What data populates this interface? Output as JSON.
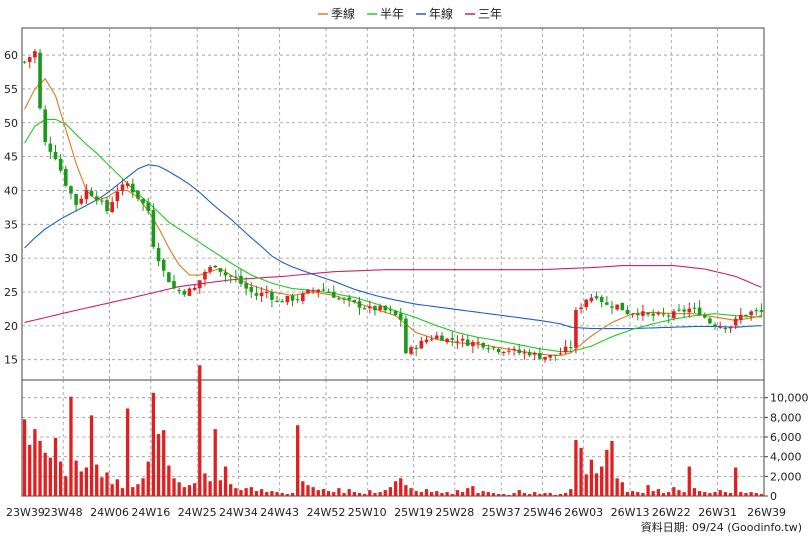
{
  "chart_data": {
    "type": "candlestick",
    "legend": [
      {
        "name": "季線",
        "color": "#e07a1a"
      },
      {
        "name": "半年",
        "color": "#22cc22"
      },
      {
        "name": "年線",
        "color": "#1f5fcf"
      },
      {
        "name": "三年",
        "color": "#cc2266"
      }
    ],
    "legend_placement": "top-center",
    "grid": true,
    "price_axis": {
      "ylim": [
        12,
        64
      ],
      "ticks": [
        15,
        20,
        25,
        30,
        35,
        40,
        45,
        50,
        55,
        60
      ]
    },
    "volume_axis": {
      "ylim": [
        0,
        11800
      ],
      "ticks": [
        0,
        2000,
        4000,
        6000,
        8000,
        10000
      ],
      "tick_labels": [
        "0",
        "2,000",
        "4,000",
        "6,000",
        "8,000",
        "10,000"
      ]
    },
    "x_tick_labels": [
      "23W39",
      "23W48",
      "24W06",
      "24W16",
      "24W25",
      "24W34",
      "24W43",
      "24W52",
      "25W10",
      "25W19",
      "25W28",
      "25W37",
      "25W46",
      "26W03",
      "26W13",
      "26W22",
      "26W31",
      "26W39"
    ],
    "colors": {
      "up": "#e02020",
      "down": "#1a9a1a",
      "volume": "#e02020"
    },
    "price_anchors": [
      [
        0,
        59
      ],
      [
        2,
        60.5
      ],
      [
        3,
        52
      ],
      [
        4,
        47
      ],
      [
        6,
        45
      ],
      [
        8,
        41
      ],
      [
        10,
        38
      ],
      [
        12,
        40
      ],
      [
        14,
        39
      ],
      [
        16,
        37
      ],
      [
        18,
        40
      ],
      [
        20,
        41
      ],
      [
        22,
        39
      ],
      [
        24,
        37
      ],
      [
        25,
        32
      ],
      [
        27,
        28
      ],
      [
        29,
        25.5
      ],
      [
        31,
        25
      ],
      [
        33,
        25.5
      ],
      [
        35,
        28
      ],
      [
        37,
        29
      ],
      [
        39,
        27.5
      ],
      [
        41,
        27
      ],
      [
        43,
        25.5
      ],
      [
        45,
        24.5
      ],
      [
        47,
        25
      ],
      [
        49,
        23.5
      ],
      [
        51,
        24
      ],
      [
        53,
        24
      ],
      [
        55,
        25
      ],
      [
        57,
        25.5
      ],
      [
        59,
        25
      ],
      [
        61,
        24
      ],
      [
        63,
        23.5
      ],
      [
        65,
        23
      ],
      [
        67,
        22.5
      ],
      [
        69,
        22.5
      ],
      [
        71,
        22
      ],
      [
        73,
        21
      ],
      [
        74,
        16
      ],
      [
        76,
        17
      ],
      [
        78,
        18
      ],
      [
        80,
        18.5
      ],
      [
        82,
        18
      ],
      [
        84,
        18
      ],
      [
        86,
        17.5
      ],
      [
        88,
        17.5
      ],
      [
        90,
        17
      ],
      [
        92,
        16.5
      ],
      [
        94,
        16.5
      ],
      [
        96,
        16
      ],
      [
        98,
        16
      ],
      [
        100,
        15.5
      ],
      [
        102,
        15.5
      ],
      [
        104,
        16
      ],
      [
        106,
        17
      ],
      [
        107,
        22
      ],
      [
        109,
        24
      ],
      [
        111,
        24.5
      ],
      [
        113,
        23
      ],
      [
        115,
        23
      ],
      [
        117,
        22
      ],
      [
        119,
        22
      ],
      [
        121,
        21.5
      ],
      [
        123,
        21.5
      ],
      [
        125,
        21.5
      ],
      [
        127,
        22
      ],
      [
        129,
        22.5
      ],
      [
        131,
        22
      ],
      [
        133,
        20.5
      ],
      [
        135,
        20
      ],
      [
        137,
        20
      ],
      [
        139,
        21.5
      ],
      [
        141,
        22
      ],
      [
        143,
        22
      ]
    ],
    "volume_anchors": [
      [
        0,
        7800
      ],
      [
        1,
        5200
      ],
      [
        2,
        6800
      ],
      [
        3,
        5600
      ],
      [
        4,
        4400
      ],
      [
        5,
        3900
      ],
      [
        6,
        5900
      ],
      [
        7,
        3500
      ],
      [
        8,
        2000
      ],
      [
        9,
        10100
      ],
      [
        10,
        3600
      ],
      [
        11,
        2500
      ],
      [
        12,
        2900
      ],
      [
        13,
        8200
      ],
      [
        14,
        3200
      ],
      [
        15,
        1900
      ],
      [
        16,
        2400
      ],
      [
        17,
        1200
      ],
      [
        18,
        1700
      ],
      [
        19,
        800
      ],
      [
        20,
        8900
      ],
      [
        21,
        900
      ],
      [
        22,
        1200
      ],
      [
        23,
        1800
      ],
      [
        24,
        3500
      ],
      [
        25,
        10500
      ],
      [
        26,
        6300
      ],
      [
        27,
        6700
      ],
      [
        28,
        3100
      ],
      [
        29,
        1800
      ],
      [
        30,
        1400
      ],
      [
        31,
        900
      ],
      [
        32,
        1100
      ],
      [
        33,
        1300
      ],
      [
        34,
        13300
      ],
      [
        35,
        2300
      ],
      [
        36,
        1500
      ],
      [
        37,
        6800
      ],
      [
        38,
        1600
      ],
      [
        39,
        3000
      ],
      [
        40,
        1200
      ],
      [
        41,
        800
      ],
      [
        42,
        600
      ],
      [
        43,
        800
      ],
      [
        44,
        900
      ],
      [
        45,
        500
      ],
      [
        46,
        700
      ],
      [
        47,
        400
      ],
      [
        48,
        500
      ],
      [
        49,
        400
      ],
      [
        50,
        300
      ],
      [
        51,
        200
      ],
      [
        52,
        300
      ],
      [
        53,
        7200
      ],
      [
        54,
        1500
      ],
      [
        55,
        1100
      ],
      [
        56,
        900
      ],
      [
        57,
        600
      ],
      [
        58,
        700
      ],
      [
        59,
        500
      ],
      [
        60,
        400
      ],
      [
        61,
        800
      ],
      [
        62,
        300
      ],
      [
        63,
        700
      ],
      [
        64,
        400
      ],
      [
        65,
        300
      ],
      [
        66,
        200
      ],
      [
        67,
        600
      ],
      [
        68,
        300
      ],
      [
        69,
        400
      ],
      [
        70,
        600
      ],
      [
        71,
        900
      ],
      [
        72,
        1500
      ],
      [
        73,
        1800
      ],
      [
        74,
        1100
      ],
      [
        75,
        800
      ],
      [
        76,
        500
      ],
      [
        77,
        400
      ],
      [
        78,
        700
      ],
      [
        79,
        400
      ],
      [
        80,
        500
      ],
      [
        81,
        300
      ],
      [
        82,
        400
      ],
      [
        83,
        200
      ],
      [
        84,
        600
      ],
      [
        85,
        400
      ],
      [
        86,
        800
      ],
      [
        87,
        1000
      ],
      [
        88,
        300
      ],
      [
        89,
        500
      ],
      [
        90,
        400
      ],
      [
        91,
        300
      ],
      [
        92,
        200
      ],
      [
        93,
        200
      ],
      [
        94,
        100
      ],
      [
        95,
        300
      ],
      [
        96,
        600
      ],
      [
        97,
        300
      ],
      [
        98,
        200
      ],
      [
        99,
        400
      ],
      [
        100,
        200
      ],
      [
        101,
        300
      ],
      [
        102,
        300
      ],
      [
        103,
        100
      ],
      [
        104,
        200
      ],
      [
        105,
        300
      ],
      [
        106,
        700
      ],
      [
        107,
        5700
      ],
      [
        108,
        4900
      ],
      [
        109,
        2200
      ],
      [
        110,
        3700
      ],
      [
        111,
        2300
      ],
      [
        112,
        3000
      ],
      [
        113,
        4700
      ],
      [
        114,
        5600
      ],
      [
        115,
        1800
      ],
      [
        116,
        1400
      ],
      [
        117,
        400
      ],
      [
        118,
        500
      ],
      [
        119,
        400
      ],
      [
        120,
        300
      ],
      [
        121,
        1100
      ],
      [
        122,
        500
      ],
      [
        123,
        700
      ],
      [
        124,
        300
      ],
      [
        125,
        400
      ],
      [
        126,
        900
      ],
      [
        127,
        600
      ],
      [
        128,
        400
      ],
      [
        129,
        3000
      ],
      [
        130,
        800
      ],
      [
        131,
        500
      ],
      [
        132,
        400
      ],
      [
        133,
        300
      ],
      [
        134,
        400
      ],
      [
        135,
        600
      ],
      [
        136,
        400
      ],
      [
        137,
        300
      ],
      [
        138,
        2900
      ],
      [
        139,
        400
      ],
      [
        140,
        300
      ],
      [
        141,
        400
      ],
      [
        142,
        300
      ],
      [
        143,
        200
      ]
    ],
    "ma_quarter": [
      [
        0,
        52
      ],
      [
        2,
        55
      ],
      [
        4,
        56.5
      ],
      [
        6,
        54
      ],
      [
        8,
        49
      ],
      [
        10,
        44
      ],
      [
        12,
        40
      ],
      [
        14,
        38.5
      ],
      [
        16,
        39
      ],
      [
        18,
        40
      ],
      [
        20,
        40
      ],
      [
        22,
        39
      ],
      [
        24,
        37
      ],
      [
        26,
        34.5
      ],
      [
        28,
        31.5
      ],
      [
        30,
        29
      ],
      [
        32,
        27.5
      ],
      [
        34,
        27.5
      ],
      [
        36,
        28
      ],
      [
        38,
        28.5
      ],
      [
        40,
        27.5
      ],
      [
        44,
        26
      ],
      [
        48,
        25
      ],
      [
        52,
        24.5
      ],
      [
        56,
        25
      ],
      [
        60,
        24.5
      ],
      [
        64,
        23.5
      ],
      [
        68,
        22.5
      ],
      [
        72,
        21.5
      ],
      [
        76,
        19
      ],
      [
        80,
        18
      ],
      [
        84,
        17.5
      ],
      [
        88,
        17.3
      ],
      [
        92,
        16.8
      ],
      [
        96,
        16.3
      ],
      [
        100,
        15.8
      ],
      [
        104,
        15.6
      ],
      [
        106,
        16
      ],
      [
        110,
        18.5
      ],
      [
        114,
        20.5
      ],
      [
        118,
        21.8
      ],
      [
        122,
        22
      ],
      [
        126,
        21.8
      ],
      [
        130,
        21.8
      ],
      [
        134,
        21.3
      ],
      [
        138,
        20.8
      ],
      [
        142,
        21.3
      ],
      [
        143,
        21.5
      ]
    ],
    "ma_halfyear": [
      [
        0,
        47
      ],
      [
        2,
        49.5
      ],
      [
        4,
        50.5
      ],
      [
        6,
        50.5
      ],
      [
        8,
        49.8
      ],
      [
        10,
        48.3
      ],
      [
        12,
        46.8
      ],
      [
        14,
        45.5
      ],
      [
        16,
        44
      ],
      [
        18,
        42.5
      ],
      [
        20,
        41
      ],
      [
        22,
        39.5
      ],
      [
        24,
        38.2
      ],
      [
        26,
        36.8
      ],
      [
        28,
        35.3
      ],
      [
        32,
        33.3
      ],
      [
        36,
        31.3
      ],
      [
        40,
        29.3
      ],
      [
        44,
        27.5
      ],
      [
        48,
        26.3
      ],
      [
        52,
        25.5
      ],
      [
        56,
        25.2
      ],
      [
        60,
        24.8
      ],
      [
        64,
        24.2
      ],
      [
        68,
        23.3
      ],
      [
        72,
        22.2
      ],
      [
        76,
        21.2
      ],
      [
        80,
        20
      ],
      [
        84,
        19
      ],
      [
        88,
        18.3
      ],
      [
        92,
        17.8
      ],
      [
        96,
        17.2
      ],
      [
        100,
        16.6
      ],
      [
        104,
        16.2
      ],
      [
        106,
        16.2
      ],
      [
        110,
        17
      ],
      [
        114,
        18.4
      ],
      [
        118,
        19.5
      ],
      [
        122,
        20.3
      ],
      [
        126,
        21
      ],
      [
        130,
        21.5
      ],
      [
        134,
        21.8
      ],
      [
        138,
        21.5
      ],
      [
        142,
        21.3
      ],
      [
        143,
        21.3
      ]
    ],
    "ma_year": [
      [
        0,
        31.5
      ],
      [
        2,
        33
      ],
      [
        4,
        34.3
      ],
      [
        6,
        35.3
      ],
      [
        8,
        36.2
      ],
      [
        10,
        37
      ],
      [
        12,
        37.8
      ],
      [
        14,
        38.6
      ],
      [
        16,
        39.6
      ],
      [
        18,
        40.8
      ],
      [
        20,
        42
      ],
      [
        22,
        43.2
      ],
      [
        24,
        43.8
      ],
      [
        26,
        43.6
      ],
      [
        28,
        42.8
      ],
      [
        30,
        41.9
      ],
      [
        32,
        40.9
      ],
      [
        34,
        39.7
      ],
      [
        36,
        38.3
      ],
      [
        38,
        37
      ],
      [
        40,
        35.8
      ],
      [
        42,
        34.4
      ],
      [
        44,
        33
      ],
      [
        46,
        31.7
      ],
      [
        48,
        30.3
      ],
      [
        50,
        29.4
      ],
      [
        52,
        28.7
      ],
      [
        56,
        27.6
      ],
      [
        60,
        26.6
      ],
      [
        64,
        25.4
      ],
      [
        68,
        24.5
      ],
      [
        72,
        23.8
      ],
      [
        76,
        23.2
      ],
      [
        80,
        22.8
      ],
      [
        84,
        22.4
      ],
      [
        88,
        22
      ],
      [
        92,
        21.6
      ],
      [
        96,
        21.2
      ],
      [
        100,
        20.8
      ],
      [
        104,
        20.3
      ],
      [
        106,
        19.8
      ],
      [
        110,
        19.6
      ],
      [
        114,
        19.6
      ],
      [
        118,
        19.6
      ],
      [
        122,
        19.7
      ],
      [
        126,
        19.8
      ],
      [
        130,
        19.9
      ],
      [
        134,
        19.9
      ],
      [
        138,
        19.8
      ],
      [
        142,
        20
      ],
      [
        143,
        20
      ]
    ],
    "ma_3year": [
      [
        0,
        20.5
      ],
      [
        10,
        22.3
      ],
      [
        20,
        24
      ],
      [
        30,
        25.8
      ],
      [
        40,
        26.8
      ],
      [
        50,
        27.3
      ],
      [
        60,
        28
      ],
      [
        70,
        28.3
      ],
      [
        80,
        28.3
      ],
      [
        90,
        28.3
      ],
      [
        100,
        28.3
      ],
      [
        110,
        28.6
      ],
      [
        116,
        28.9
      ],
      [
        126,
        28.9
      ],
      [
        132,
        28.4
      ],
      [
        138,
        27.3
      ],
      [
        142,
        26
      ],
      [
        143,
        25.7
      ]
    ]
  },
  "footer": {
    "source": "資料日期: 09/24  (Goodinfo.tw)"
  }
}
